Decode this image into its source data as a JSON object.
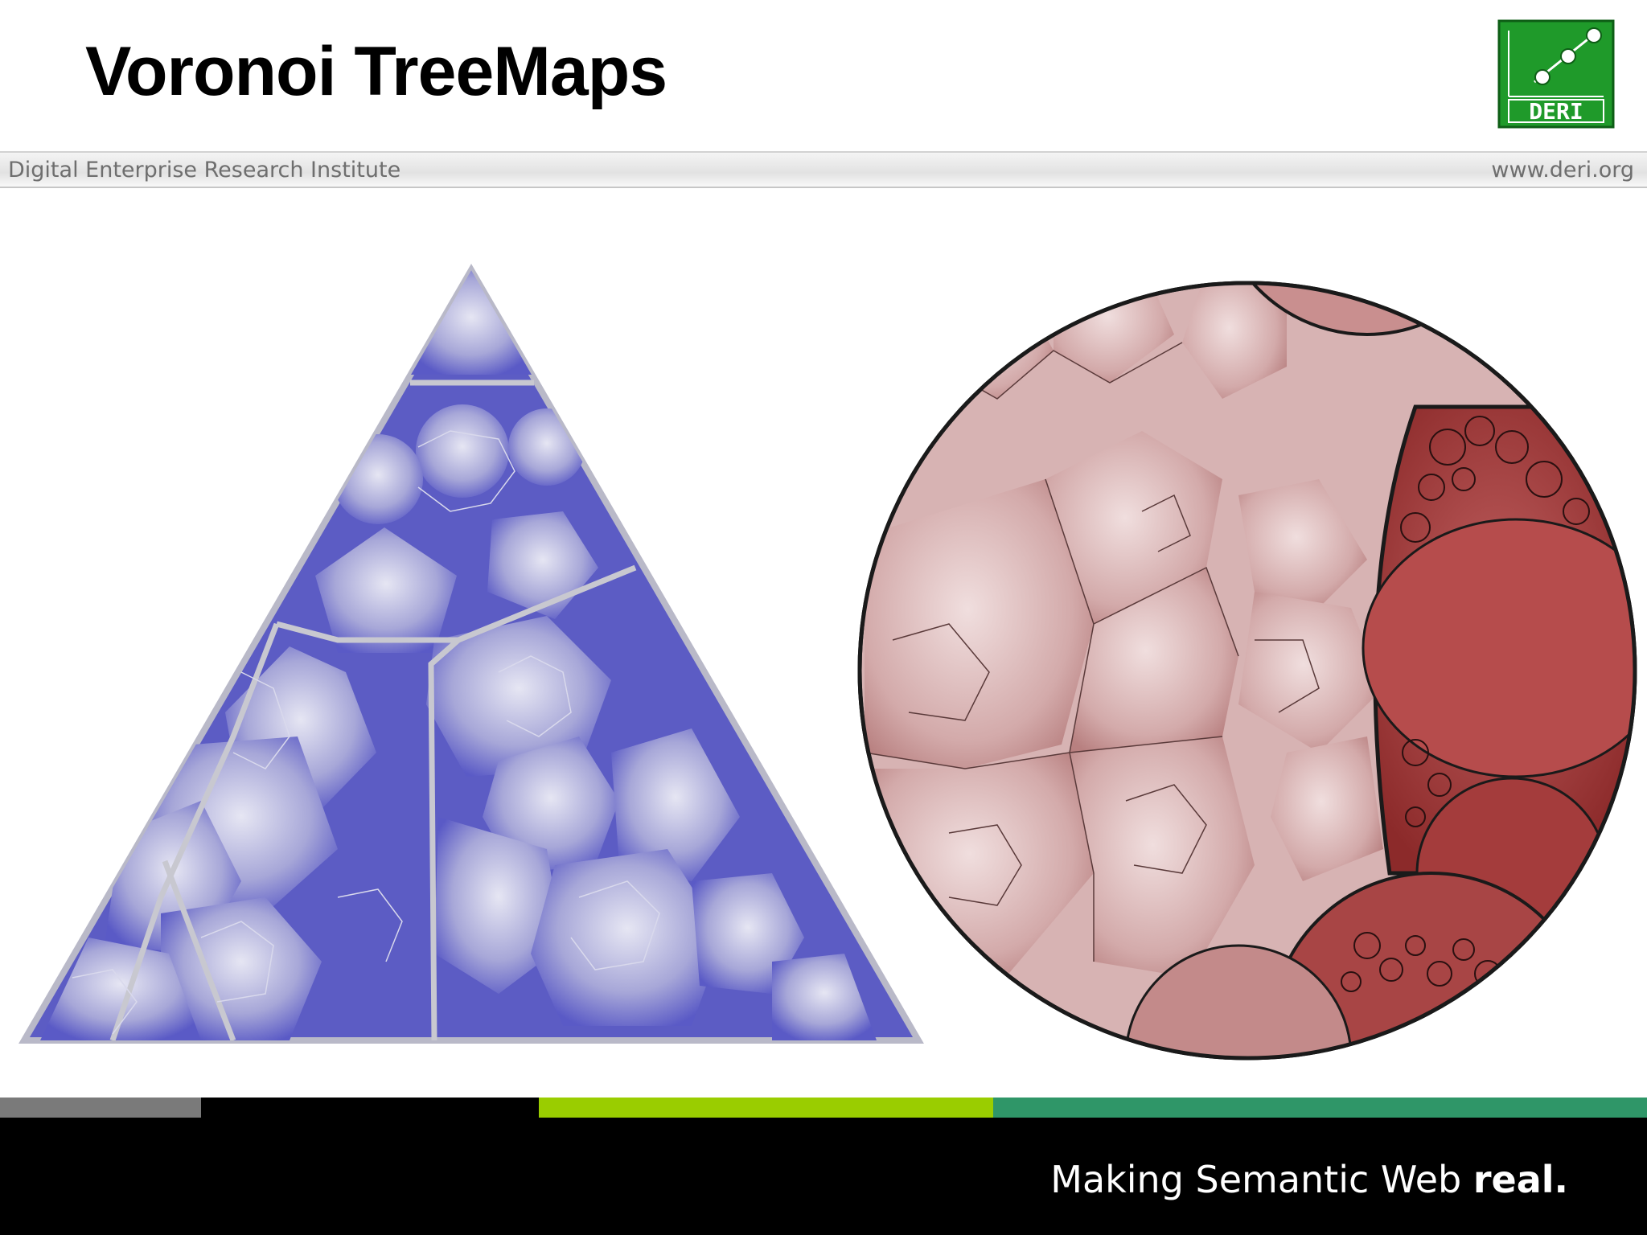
{
  "header": {
    "title": "Voronoi TreeMaps",
    "institute": "Digital Enterprise Research Institute",
    "website": "www.deri.org"
  },
  "logo": {
    "text": "DERI",
    "color": "#1f9a2a"
  },
  "figures": {
    "triangle_color": "#5a5ac8",
    "circle_color": "#b04848"
  },
  "footer": {
    "tagline_main": "Making Semantic Web ",
    "tagline_bold": "real.",
    "bar_colors": [
      "#7a7a7a",
      "#000000",
      "#9acd00",
      "#2f9668"
    ]
  }
}
